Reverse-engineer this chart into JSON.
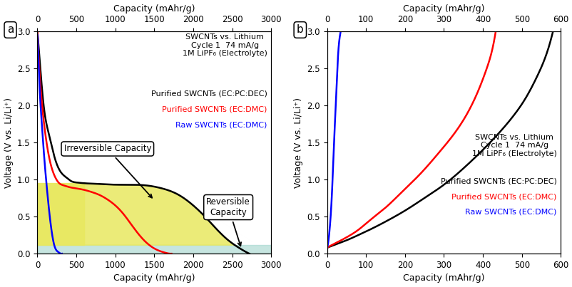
{
  "panel_a": {
    "title_top": "Capacity (mAhr/g)",
    "title_bottom": "Capacity (mAhr/g)",
    "ylabel": "Voltage (V vs. Li/Li⁺)",
    "xlim": [
      0,
      3000
    ],
    "ylim": [
      0.0,
      3.0
    ],
    "xticks": [
      0,
      500,
      1000,
      1500,
      2000,
      2500,
      3000
    ],
    "yticks": [
      0.0,
      0.5,
      1.0,
      1.5,
      2.0,
      2.5,
      3.0
    ],
    "annotation_irrev": "Irreversible Capacity",
    "annotation_rev": "Reversible\nCapacity",
    "label": "a",
    "annotation_text": "SWCNTs vs. Lithium\nCycle 1  74 mA/g\n1M LiPF₆ (Electrolyte)",
    "yellow_color": "#e8e860",
    "teal_color": "#a0d4cc"
  },
  "panel_b": {
    "title_top": "Capacity (mAhr/g)",
    "title_bottom": "Capacity (mAhr/g)",
    "ylabel": "Voltage (V vs. Li/Li⁺)",
    "xlim": [
      0,
      600
    ],
    "ylim": [
      0.0,
      3.0
    ],
    "xticks": [
      0,
      100,
      200,
      300,
      400,
      500,
      600
    ],
    "yticks": [
      0.0,
      0.5,
      1.0,
      1.5,
      2.0,
      2.5,
      3.0
    ],
    "label": "b",
    "annotation_text": "SWCNTs vs. Lithium\nCycle 1  74 mA/g\n1M LiPF₆ (Electrolyte)"
  }
}
